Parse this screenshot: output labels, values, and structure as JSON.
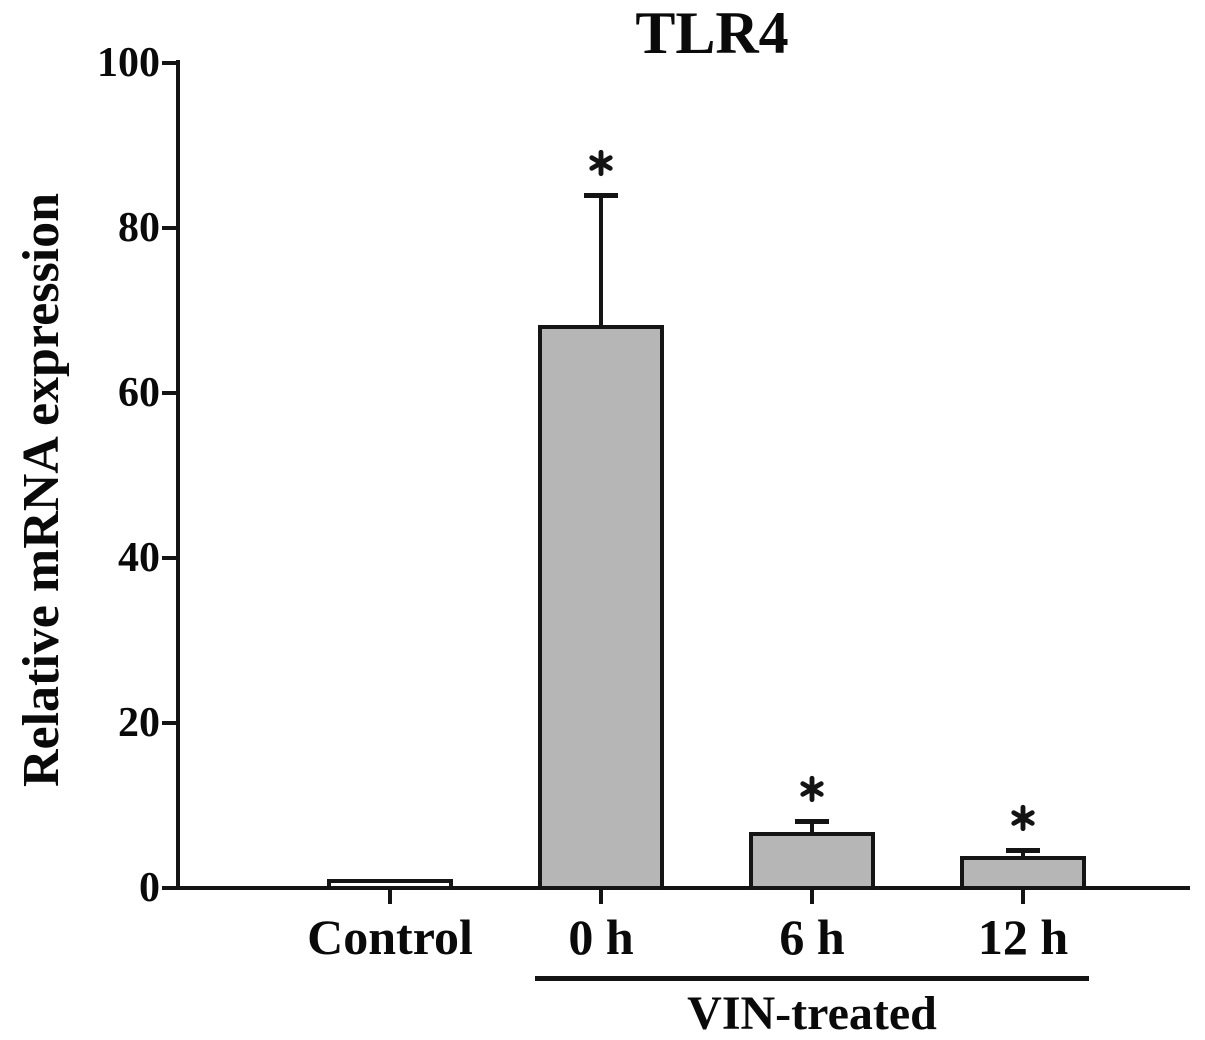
{
  "figure": {
    "background": "#ffffff",
    "ink_color": "#141414"
  },
  "chart_data": {
    "type": "bar",
    "title": "TLR4",
    "xlabel": "",
    "ylabel": "Relative mRNA expression",
    "ylim": [
      0,
      100
    ],
    "yticks": [
      "0",
      "20",
      "40",
      "60",
      "80",
      "100"
    ],
    "grid": false,
    "legend": false,
    "categories": [
      "Control",
      "0 h",
      "6 h",
      "12 h"
    ],
    "values": [
      0.9,
      68,
      6.5,
      3.6
    ],
    "errors": [
      null,
      16,
      1.6,
      1.0
    ],
    "significance": [
      false,
      true,
      true,
      true
    ],
    "sig_symbol": "*",
    "bar_fills": [
      "#ffffff",
      "#b6b6b6",
      "#b6b6b6",
      "#b6b6b6"
    ],
    "bar_border_color": "#151515",
    "group_annotation": {
      "label": "VIN-treated",
      "from_category": "0 h",
      "to_category": "12 h",
      "from_index": 1,
      "to_index": 3
    }
  }
}
